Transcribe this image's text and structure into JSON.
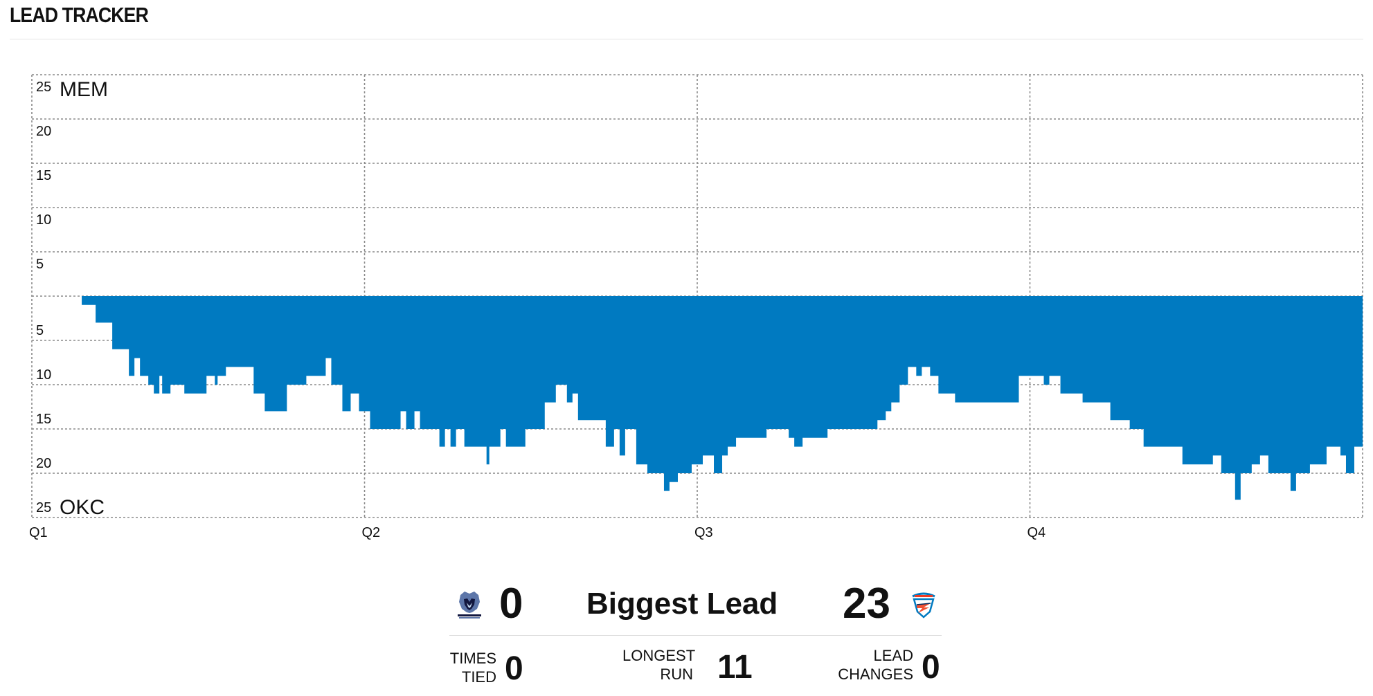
{
  "header": {
    "title": "LEAD TRACKER"
  },
  "chart_data": {
    "type": "area",
    "title": "",
    "xlabel": "",
    "ylabel": "",
    "x_ticks": [
      "Q1",
      "Q2",
      "Q3",
      "Q4"
    ],
    "y_ticks_top": [
      "25",
      "20",
      "15",
      "10",
      "5"
    ],
    "y_ticks_bottom": [
      "5",
      "10",
      "15",
      "20",
      "25"
    ],
    "top_team": "MEM",
    "bottom_team": "OKC",
    "ylim": [
      -25,
      25
    ],
    "xlim": [
      0,
      48
    ],
    "grid": true,
    "fill_color": "#007AC1",
    "series": [
      {
        "values": [
          [
            0,
            0
          ],
          [
            1.8,
            -1
          ],
          [
            2.3,
            -3
          ],
          [
            2.9,
            -6
          ],
          [
            3.5,
            -9
          ],
          [
            3.7,
            -7
          ],
          [
            3.9,
            -9
          ],
          [
            4.2,
            -10
          ],
          [
            4.4,
            -11
          ],
          [
            4.6,
            -9
          ],
          [
            4.7,
            -11
          ],
          [
            5.0,
            -10
          ],
          [
            5.5,
            -11
          ],
          [
            6.3,
            -9
          ],
          [
            6.6,
            -10
          ],
          [
            6.7,
            -9
          ],
          [
            7.0,
            -8
          ],
          [
            7.5,
            -8
          ],
          [
            7.7,
            -8
          ],
          [
            8.0,
            -11
          ],
          [
            8.4,
            -13
          ],
          [
            9.0,
            -13
          ],
          [
            9.2,
            -10
          ],
          [
            9.6,
            -10
          ],
          [
            9.9,
            -9
          ],
          [
            10.4,
            -9
          ],
          [
            10.6,
            -7
          ],
          [
            10.8,
            -10
          ],
          [
            11.2,
            -13
          ],
          [
            11.5,
            -11
          ],
          [
            11.8,
            -13
          ],
          [
            12.2,
            -15
          ],
          [
            13.0,
            -15
          ],
          [
            13.3,
            -13
          ],
          [
            13.5,
            -15
          ],
          [
            13.8,
            -13
          ],
          [
            14.0,
            -15
          ],
          [
            14.4,
            -15
          ],
          [
            14.7,
            -17
          ],
          [
            14.9,
            -15
          ],
          [
            15.1,
            -17
          ],
          [
            15.3,
            -15
          ],
          [
            15.6,
            -17
          ],
          [
            16.2,
            -17
          ],
          [
            16.4,
            -19
          ],
          [
            16.5,
            -17
          ],
          [
            16.9,
            -15
          ],
          [
            17.1,
            -17
          ],
          [
            17.8,
            -15
          ],
          [
            18.5,
            -12
          ],
          [
            18.9,
            -10
          ],
          [
            19.3,
            -12
          ],
          [
            19.5,
            -11
          ],
          [
            19.7,
            -14
          ],
          [
            20.5,
            -14
          ],
          [
            20.7,
            -17
          ],
          [
            21.0,
            -15
          ],
          [
            21.2,
            -18
          ],
          [
            21.4,
            -15
          ],
          [
            21.8,
            -19
          ],
          [
            22.2,
            -20
          ],
          [
            22.8,
            -22
          ],
          [
            23.0,
            -21
          ],
          [
            23.3,
            -20
          ],
          [
            23.8,
            -19
          ],
          [
            24.2,
            -18
          ],
          [
            24.6,
            -20
          ],
          [
            24.9,
            -18
          ],
          [
            25.1,
            -17
          ],
          [
            25.4,
            -16
          ],
          [
            25.8,
            -16
          ],
          [
            26.5,
            -15
          ],
          [
            27.3,
            -16
          ],
          [
            27.5,
            -17
          ],
          [
            27.8,
            -16
          ],
          [
            28.2,
            -16
          ],
          [
            28.7,
            -15
          ],
          [
            29.0,
            -15
          ],
          [
            29.9,
            -15
          ],
          [
            30.5,
            -14
          ],
          [
            30.8,
            -13
          ],
          [
            31.0,
            -12
          ],
          [
            31.3,
            -10
          ],
          [
            31.6,
            -8
          ],
          [
            31.9,
            -9
          ],
          [
            32.1,
            -8
          ],
          [
            32.4,
            -9
          ],
          [
            32.7,
            -11
          ],
          [
            33.3,
            -12
          ],
          [
            34.3,
            -12
          ],
          [
            34.8,
            -12
          ],
          [
            35.6,
            -9
          ],
          [
            36.2,
            -9
          ],
          [
            36.5,
            -10
          ],
          [
            36.7,
            -9
          ],
          [
            37.1,
            -11
          ],
          [
            37.5,
            -11
          ],
          [
            37.9,
            -12
          ],
          [
            38.4,
            -12
          ],
          [
            38.9,
            -14
          ],
          [
            39.6,
            -15
          ],
          [
            40.1,
            -17
          ],
          [
            40.7,
            -17
          ],
          [
            41.2,
            -17
          ],
          [
            41.5,
            -19
          ],
          [
            42.3,
            -19
          ],
          [
            42.6,
            -18
          ],
          [
            42.9,
            -20
          ],
          [
            43.4,
            -23
          ],
          [
            43.6,
            -20
          ],
          [
            44.0,
            -19
          ],
          [
            44.3,
            -18
          ],
          [
            44.6,
            -20
          ],
          [
            45.2,
            -20
          ],
          [
            45.4,
            -22
          ],
          [
            45.6,
            -20
          ],
          [
            46.1,
            -19
          ],
          [
            46.7,
            -17
          ],
          [
            47.2,
            -18
          ],
          [
            47.4,
            -20
          ],
          [
            47.7,
            -17
          ],
          [
            48.0,
            -19
          ]
        ]
      }
    ]
  },
  "summary": {
    "home_team_logo": "memphis-grizzlies-logo",
    "away_team_logo": "okc-thunder-logo",
    "mem_biggest_lead": "0",
    "biggest_lead_label": "Biggest Lead",
    "okc_biggest_lead": "23",
    "times_tied_label_1": "TIMES",
    "times_tied_label_2": "TIED",
    "times_tied": "0",
    "longest_run_label_1": "LONGEST",
    "longest_run_label_2": "RUN",
    "longest_run": "11",
    "lead_changes_label_1": "LEAD",
    "lead_changes_label_2": "CHANGES",
    "lead_changes": "0"
  }
}
